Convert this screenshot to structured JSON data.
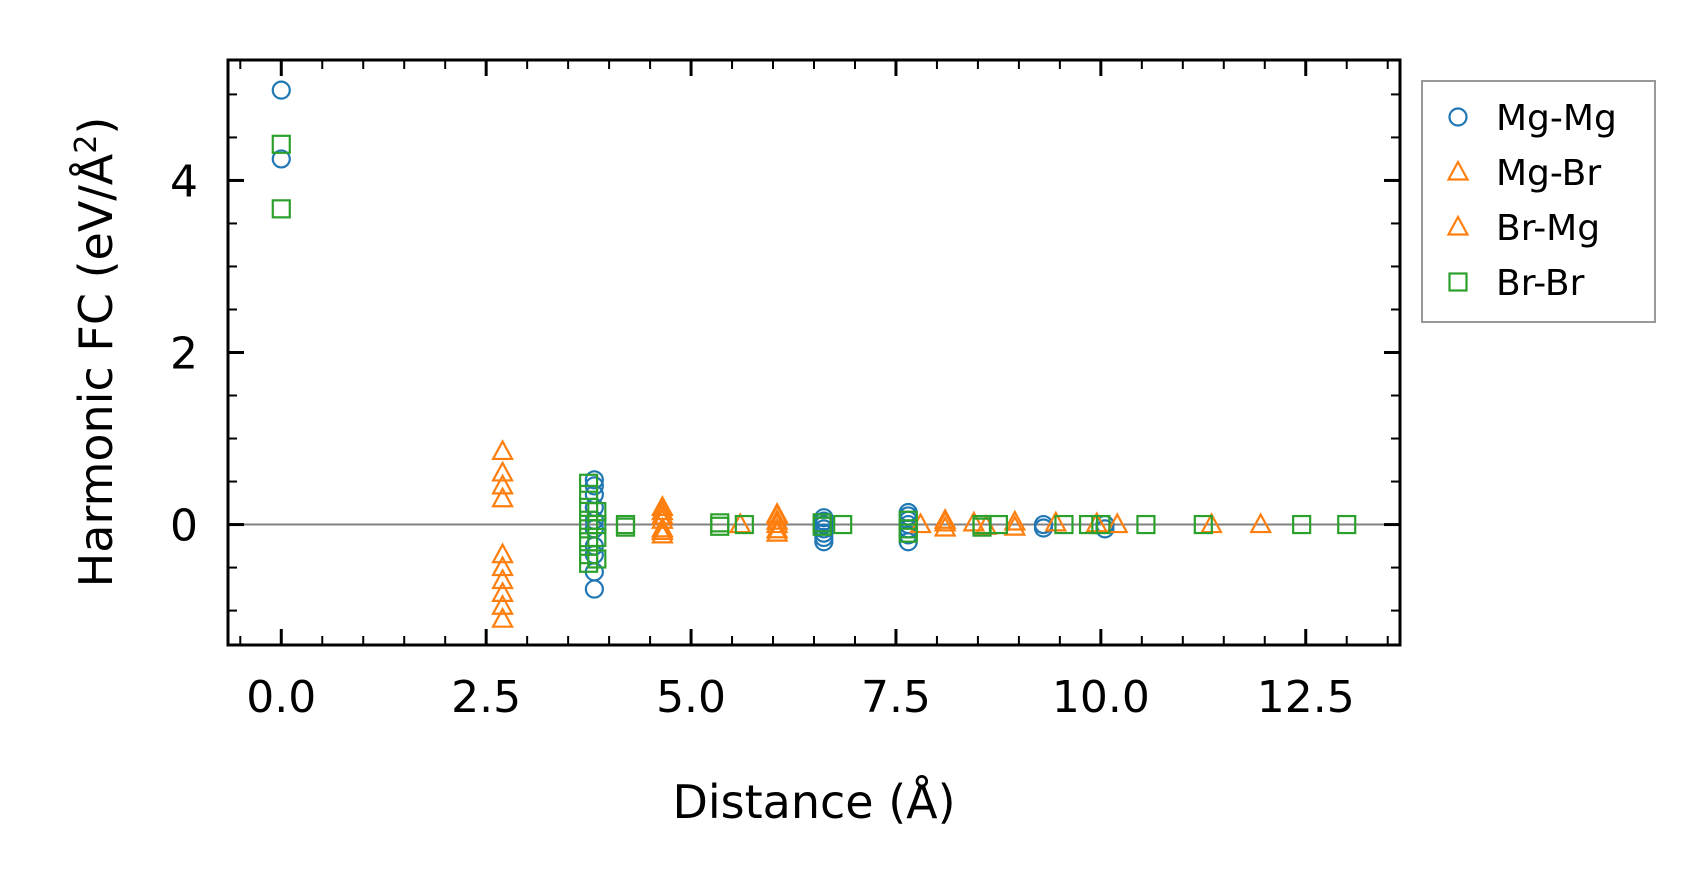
{
  "chart_data": {
    "type": "scatter",
    "xlabel": "Distance (Å)",
    "ylabel_main": "Harmonic FC (eV/Å",
    "ylabel_sup": "2",
    "ylabel_close": ")",
    "xlim": [
      -0.65,
      13.65
    ],
    "ylim": [
      -1.4,
      5.4
    ],
    "xticks": [
      0,
      2.5,
      5,
      7.5,
      10,
      12.5
    ],
    "xtick_labels": [
      "0.0",
      "2.5",
      "5.0",
      "7.5",
      "10.0",
      "12.5"
    ],
    "yticks": [
      0,
      2,
      4
    ],
    "ytick_labels": [
      "0",
      "2",
      "4"
    ],
    "legend_position": "outside-right",
    "zero_line": true,
    "series": [
      {
        "name": "Mg-Mg",
        "marker": "circle",
        "color": "#1f77b4",
        "points": [
          [
            0,
            5.05
          ],
          [
            0,
            4.25
          ],
          [
            3.82,
            0.52
          ],
          [
            3.82,
            0.45
          ],
          [
            3.82,
            0.35
          ],
          [
            3.82,
            0.2
          ],
          [
            3.82,
            0.05
          ],
          [
            3.82,
            -0.05
          ],
          [
            3.82,
            -0.25
          ],
          [
            3.82,
            -0.35
          ],
          [
            3.82,
            -0.55
          ],
          [
            3.82,
            -0.75
          ],
          [
            6.62,
            0.08
          ],
          [
            6.62,
            0.04
          ],
          [
            6.62,
            0.0
          ],
          [
            6.62,
            -0.05
          ],
          [
            6.62,
            -0.1
          ],
          [
            6.62,
            -0.15
          ],
          [
            6.62,
            -0.2
          ],
          [
            7.65,
            0.14
          ],
          [
            7.65,
            0.1
          ],
          [
            7.65,
            0.05
          ],
          [
            7.65,
            0.0
          ],
          [
            7.65,
            -0.05
          ],
          [
            7.65,
            -0.12
          ],
          [
            7.65,
            -0.2
          ],
          [
            9.3,
            0.0
          ],
          [
            9.3,
            -0.04
          ],
          [
            10.05,
            0.0
          ],
          [
            10.05,
            -0.05
          ]
        ]
      },
      {
        "name": "Mg-Br",
        "marker": "triangle",
        "color": "#ff7f0e",
        "points": [
          [
            2.7,
            0.85
          ],
          [
            2.7,
            0.6
          ],
          [
            2.7,
            0.45
          ],
          [
            2.7,
            0.3
          ],
          [
            2.7,
            -0.35
          ],
          [
            2.7,
            -0.5
          ],
          [
            2.7,
            -0.65
          ],
          [
            2.7,
            -0.8
          ],
          [
            2.7,
            -0.95
          ],
          [
            2.7,
            -1.1
          ],
          [
            4.65,
            0.15
          ],
          [
            4.65,
            0.05
          ],
          [
            4.65,
            -0.05
          ],
          [
            4.65,
            -0.12
          ],
          [
            6.05,
            0.1
          ],
          [
            6.05,
            0.0
          ],
          [
            6.05,
            -0.1
          ],
          [
            7.8,
            0.0
          ],
          [
            8.1,
            0.05
          ],
          [
            8.1,
            -0.04
          ],
          [
            8.45,
            0.02
          ],
          [
            8.95,
            0.03
          ],
          [
            8.95,
            -0.03
          ],
          [
            9.45,
            0.02
          ],
          [
            9.95,
            0.01
          ],
          [
            10.2,
            0.0
          ],
          [
            11.35,
            0.0
          ],
          [
            11.95,
            0.0
          ]
        ]
      },
      {
        "name": "Br-Mg",
        "marker": "triangle",
        "color": "#ff7f0e",
        "points": [
          [
            4.65,
            0.2
          ],
          [
            4.65,
            0.1
          ],
          [
            4.65,
            -0.08
          ],
          [
            6.05,
            0.12
          ],
          [
            6.05,
            0.04
          ],
          [
            6.05,
            -0.06
          ],
          [
            5.6,
            0.0
          ],
          [
            8.1,
            0.02
          ],
          [
            8.6,
            -0.02
          ]
        ]
      },
      {
        "name": "Br-Br",
        "marker": "square",
        "color": "#2ca02c",
        "points": [
          [
            0,
            4.42
          ],
          [
            0,
            3.67
          ],
          [
            3.75,
            0.48
          ],
          [
            3.75,
            0.35
          ],
          [
            3.75,
            0.2
          ],
          [
            3.75,
            0.05
          ],
          [
            3.75,
            -0.05
          ],
          [
            3.75,
            -0.2
          ],
          [
            3.75,
            -0.35
          ],
          [
            3.75,
            -0.45
          ],
          [
            3.85,
            0.15
          ],
          [
            3.85,
            0.0
          ],
          [
            3.85,
            -0.15
          ],
          [
            3.85,
            -0.4
          ],
          [
            4.2,
            0.0
          ],
          [
            4.2,
            -0.03
          ],
          [
            5.35,
            0.02
          ],
          [
            5.35,
            -0.02
          ],
          [
            5.65,
            0.0
          ],
          [
            6.6,
            0.02
          ],
          [
            6.6,
            -0.02
          ],
          [
            6.85,
            0.0
          ],
          [
            7.65,
            0.05
          ],
          [
            7.65,
            -0.05
          ],
          [
            7.65,
            -0.1
          ],
          [
            8.55,
            0.0
          ],
          [
            8.55,
            -0.03
          ],
          [
            8.75,
            0.0
          ],
          [
            9.55,
            0.0
          ],
          [
            9.85,
            0.0
          ],
          [
            10.0,
            0.0
          ],
          [
            10.55,
            0.0
          ],
          [
            11.25,
            0.0
          ],
          [
            12.45,
            0.0
          ],
          [
            13.0,
            0.0
          ]
        ]
      }
    ]
  }
}
